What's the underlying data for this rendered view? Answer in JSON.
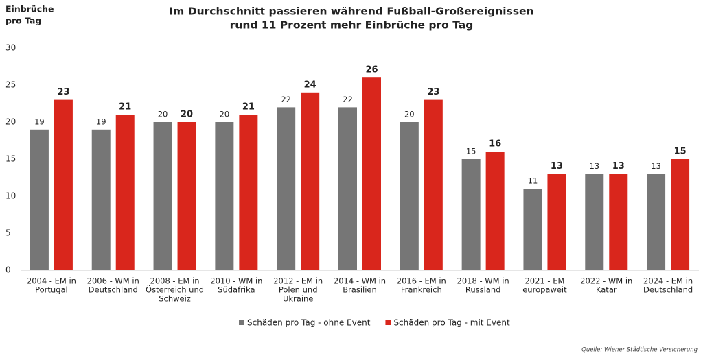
{
  "chart_data": {
    "type": "bar",
    "title": [
      "Im Durchschnitt passieren während Fußball-Großereignissen",
      "rund 11 Prozent mehr Einbrüche pro Tag"
    ],
    "y_label": [
      "Einbrüche",
      "pro Tag"
    ],
    "categories": [
      [
        "2004 - EM in",
        "Portugal"
      ],
      [
        "2006 - WM in",
        "Deutschland"
      ],
      [
        "2008 - EM in",
        "Österreich und",
        "Schweiz"
      ],
      [
        "2010 - WM in",
        "Südafrika"
      ],
      [
        "2012 - EM in",
        "Polen und",
        "Ukraine"
      ],
      [
        "2014 - WM in",
        "Brasilien"
      ],
      [
        "2016 - EM in",
        "Frankreich"
      ],
      [
        "2018 - WM in",
        "Russland"
      ],
      [
        "2021 - EM",
        "europaweit"
      ],
      [
        "2022 - WM in",
        "Katar"
      ],
      [
        "2024 - EM in",
        "Deutschland"
      ]
    ],
    "series": [
      {
        "name": "Schäden pro Tag - ohne Event",
        "color": "#767676",
        "values": [
          19,
          19,
          20,
          20,
          22,
          22,
          20,
          15,
          11,
          13,
          13
        ]
      },
      {
        "name": "Schäden pro Tag - mit Event",
        "color": "#d9261c",
        "values": [
          23,
          21,
          20,
          21,
          24,
          26,
          23,
          16,
          13,
          13,
          15
        ]
      }
    ],
    "ylim": [
      0,
      30
    ],
    "yticks": [
      0,
      5,
      10,
      15,
      20,
      25,
      30
    ],
    "grid": false,
    "legend": "bottom",
    "source": "Quelle: Wiener Städtische Versicherung"
  }
}
